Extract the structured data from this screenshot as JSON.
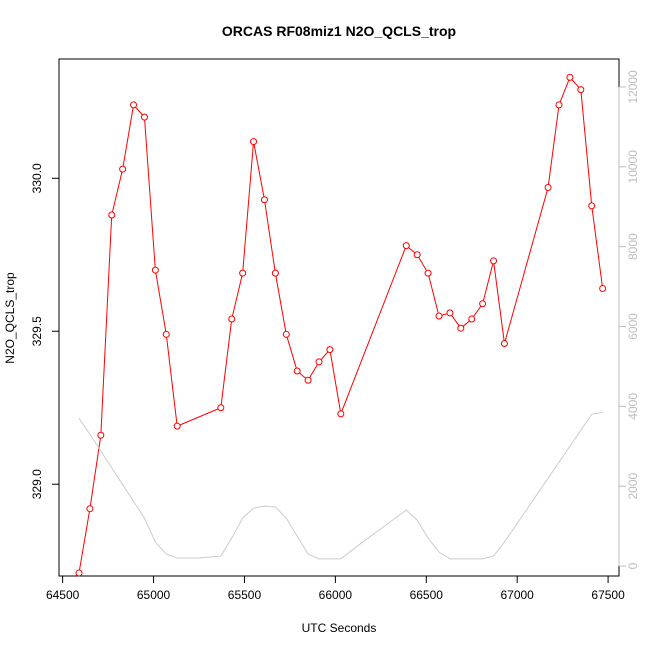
{
  "chart_data": {
    "type": "line",
    "title": "ORCAS RF08miz1 N2O_QCLS_trop",
    "xlabel": "UTC Seconds",
    "ylabel": "N2O_QCLS_trop",
    "xlim": [
      64480,
      67560
    ],
    "ylim": [
      328.7,
      330.39
    ],
    "y2lim": [
      -250,
      12700
    ],
    "x_ticks": [
      64500,
      65000,
      65500,
      66000,
      66500,
      67000,
      67500
    ],
    "y_ticks": [
      329.0,
      329.5,
      330.0
    ],
    "y2_ticks": [
      0,
      2000,
      4000,
      6000,
      8000,
      10000,
      12000
    ],
    "grid": false,
    "series": [
      {
        "color": "#ff0000",
        "axis": "left",
        "marker": "open-circle",
        "points": [
          [
            64590,
            328.71
          ],
          [
            64650,
            328.92
          ],
          [
            64710,
            329.16
          ],
          [
            64770,
            329.88
          ],
          [
            64830,
            330.03
          ],
          [
            64890,
            330.24
          ],
          [
            64950,
            330.2
          ],
          [
            65010,
            329.7
          ],
          [
            65070,
            329.49
          ],
          [
            65130,
            329.19
          ],
          [
            65370,
            329.25
          ],
          [
            65430,
            329.54
          ],
          [
            65490,
            329.69
          ],
          [
            65550,
            330.12
          ],
          [
            65610,
            329.93
          ],
          [
            65670,
            329.69
          ],
          [
            65730,
            329.49
          ],
          [
            65790,
            329.37
          ],
          [
            65850,
            329.34
          ],
          [
            65910,
            329.4
          ],
          [
            65970,
            329.44
          ],
          [
            66030,
            329.23
          ],
          [
            66390,
            329.78
          ],
          [
            66450,
            329.75
          ],
          [
            66510,
            329.69
          ],
          [
            66570,
            329.55
          ],
          [
            66630,
            329.56
          ],
          [
            66690,
            329.51
          ],
          [
            66750,
            329.54
          ],
          [
            66810,
            329.59
          ],
          [
            66870,
            329.73
          ],
          [
            66930,
            329.46
          ],
          [
            67170,
            329.97
          ],
          [
            67230,
            330.24
          ],
          [
            67290,
            330.33
          ],
          [
            67350,
            330.29
          ],
          [
            67410,
            329.91
          ],
          [
            67470,
            329.64
          ]
        ]
      },
      {
        "color": "#cccccc",
        "axis": "right",
        "marker": "none",
        "points": [
          [
            64590,
            3700
          ],
          [
            64650,
            3300
          ],
          [
            64750,
            2600
          ],
          [
            64850,
            1900
          ],
          [
            64950,
            1200
          ],
          [
            65010,
            600
          ],
          [
            65070,
            300
          ],
          [
            65130,
            200
          ],
          [
            65250,
            200
          ],
          [
            65370,
            250
          ],
          [
            65430,
            700
          ],
          [
            65490,
            1200
          ],
          [
            65550,
            1450
          ],
          [
            65610,
            1500
          ],
          [
            65670,
            1480
          ],
          [
            65730,
            1200
          ],
          [
            65790,
            750
          ],
          [
            65850,
            300
          ],
          [
            65910,
            180
          ],
          [
            65970,
            180
          ],
          [
            66030,
            180
          ],
          [
            66150,
            600
          ],
          [
            66270,
            1000
          ],
          [
            66390,
            1400
          ],
          [
            66450,
            1150
          ],
          [
            66510,
            700
          ],
          [
            66570,
            350
          ],
          [
            66630,
            180
          ],
          [
            66690,
            180
          ],
          [
            66750,
            180
          ],
          [
            66810,
            180
          ],
          [
            66870,
            250
          ],
          [
            66930,
            600
          ],
          [
            67050,
            1400
          ],
          [
            67170,
            2200
          ],
          [
            67290,
            3000
          ],
          [
            67410,
            3800
          ],
          [
            67470,
            3850
          ]
        ]
      }
    ]
  }
}
